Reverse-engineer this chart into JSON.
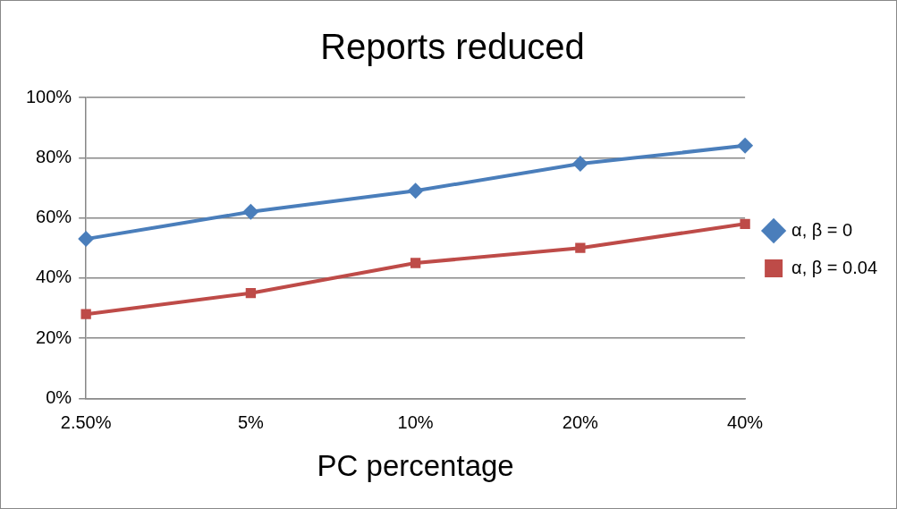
{
  "chart_data": {
    "type": "line",
    "title": "Reports reduced",
    "xlabel": "PC percentage",
    "categories": [
      "2.50%",
      "5%",
      "10%",
      "20%",
      "40%"
    ],
    "series": [
      {
        "name": "α, β = 0",
        "color": "#4a7ebb",
        "values": [
          53,
          62,
          69,
          78,
          84
        ],
        "marker": "diamond"
      },
      {
        "name": "α, β = 0.04",
        "color": "#be4b48",
        "values": [
          28,
          35,
          45,
          50,
          58
        ],
        "marker": "square"
      }
    ],
    "ylim": [
      0,
      100
    ],
    "yticks": [
      {
        "value": 0,
        "label": "0%"
      },
      {
        "value": 20,
        "label": "20%"
      },
      {
        "value": 40,
        "label": "40%"
      },
      {
        "value": 60,
        "label": "60%"
      },
      {
        "value": 80,
        "label": "80%"
      },
      {
        "value": 100,
        "label": "100%"
      }
    ],
    "grid": "y",
    "legend": "right",
    "line_style": "solid"
  }
}
